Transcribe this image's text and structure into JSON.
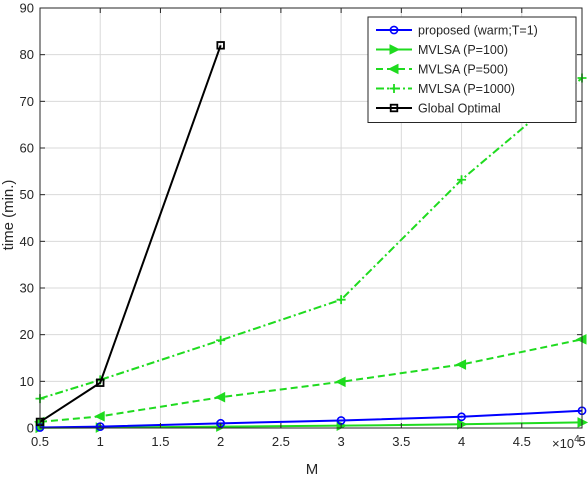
{
  "chart_data": {
    "type": "line",
    "xlabel": "M",
    "ylabel": "time (min.)",
    "x_exponent_label": "×10",
    "x_exponent_power": "4",
    "xlim": [
      0.5,
      5
    ],
    "ylim": [
      0,
      90
    ],
    "xticks": [
      0.5,
      1,
      1.5,
      2,
      2.5,
      3,
      3.5,
      4,
      4.5,
      5
    ],
    "xtick_labels": [
      "0.5",
      "1",
      "1.5",
      "2",
      "2.5",
      "3",
      "3.5",
      "4",
      "4.5",
      "5"
    ],
    "yticks": [
      0,
      10,
      20,
      30,
      40,
      50,
      60,
      70,
      80,
      90
    ],
    "ytick_labels": [
      "0",
      "10",
      "20",
      "30",
      "40",
      "50",
      "60",
      "70",
      "80",
      "90"
    ],
    "grid": true,
    "legend_position": "top-right",
    "series": [
      {
        "name": "proposed (warm;T=1)",
        "color": "#0000ff",
        "line_style": "solid",
        "marker": "circle",
        "x": [
          0.5,
          1,
          2,
          3,
          4,
          5
        ],
        "y": [
          0.1,
          0.3,
          1.0,
          1.6,
          2.4,
          3.7
        ]
      },
      {
        "name": "MVLSA (P=100)",
        "color": "#1fdb1f",
        "line_style": "solid",
        "marker": "triangle-right",
        "x": [
          0.5,
          1,
          2,
          3,
          4,
          5
        ],
        "y": [
          0.05,
          0.1,
          0.3,
          0.5,
          0.8,
          1.2
        ]
      },
      {
        "name": "MVLSA (P=500)",
        "color": "#1fdb1f",
        "line_style": "dashed",
        "marker": "triangle-left",
        "x": [
          0.5,
          1,
          2,
          3,
          4,
          5
        ],
        "y": [
          1.3,
          2.5,
          6.6,
          9.9,
          13.6,
          19.0
        ]
      },
      {
        "name": "MVLSA (P=1000)",
        "color": "#1fdb1f",
        "line_style": "dashdot",
        "marker": "plus",
        "x": [
          0.5,
          1,
          2,
          3,
          4,
          5
        ],
        "y": [
          6.3,
          10.3,
          18.8,
          27.5,
          53.2,
          75.0
        ]
      },
      {
        "name": "Global Optimal",
        "color": "#000000",
        "line_style": "solid",
        "marker": "square",
        "x": [
          0.5,
          1,
          2
        ],
        "y": [
          1.3,
          9.7,
          82.0
        ]
      }
    ]
  }
}
